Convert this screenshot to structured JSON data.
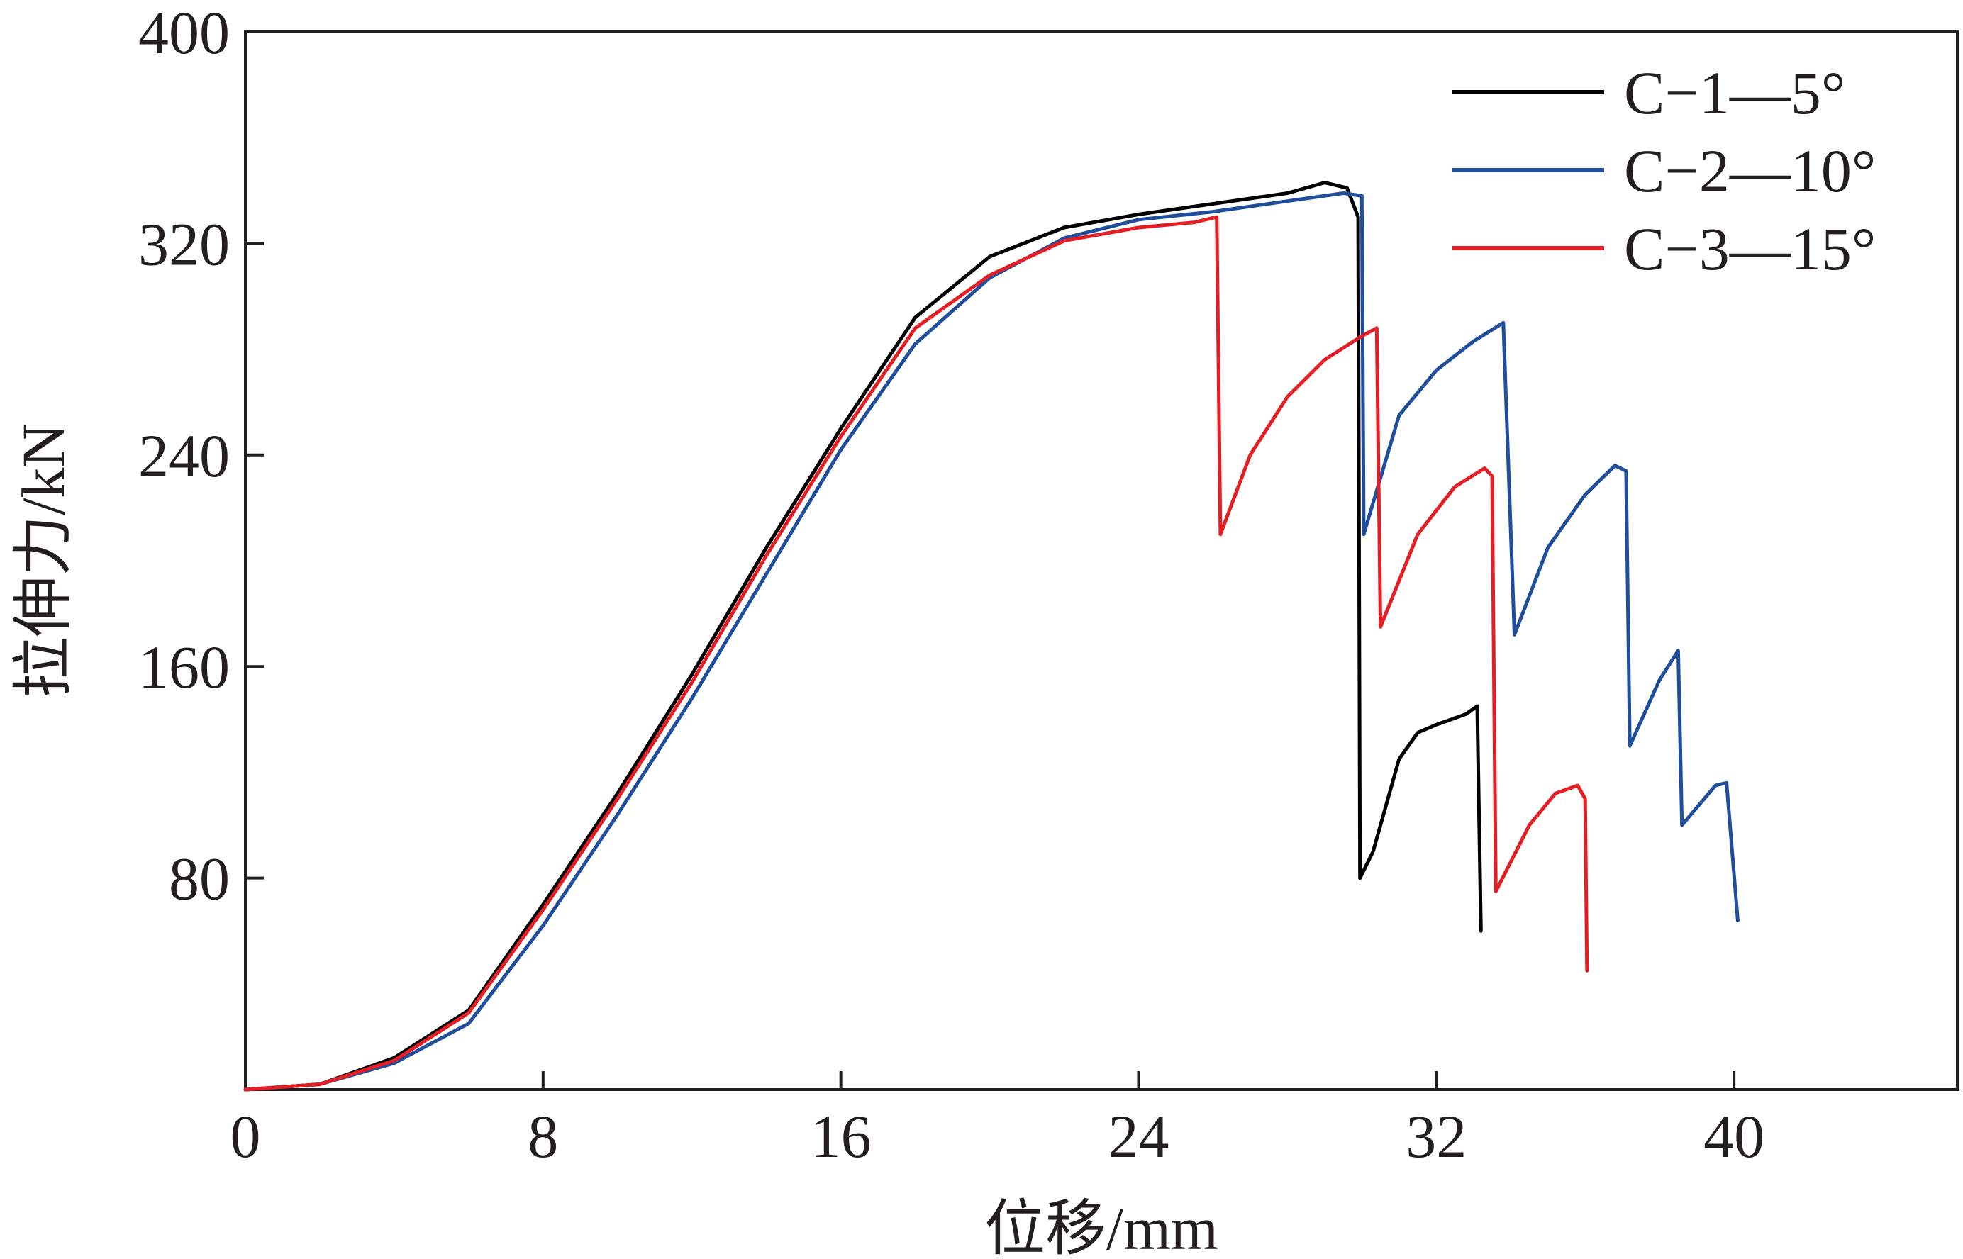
{
  "chart_data": {
    "type": "line",
    "xlabel": "位移/mm",
    "ylabel": "拉伸力/kN",
    "xlim": [
      0,
      46
    ],
    "ylim": [
      0,
      400
    ],
    "xticks": [
      0,
      8,
      16,
      24,
      32,
      40
    ],
    "yticks": [
      80,
      160,
      240,
      320,
      400
    ],
    "grid": false,
    "legend_position": "top-right",
    "series": [
      {
        "name": "C−1—5°",
        "color": "#000000",
        "points": [
          [
            0,
            0
          ],
          [
            2,
            2
          ],
          [
            4,
            12
          ],
          [
            6,
            30
          ],
          [
            8,
            70
          ],
          [
            10,
            112
          ],
          [
            12,
            157
          ],
          [
            14,
            205
          ],
          [
            16,
            250
          ],
          [
            18,
            292
          ],
          [
            20,
            315
          ],
          [
            22,
            326
          ],
          [
            24,
            331
          ],
          [
            26,
            335
          ],
          [
            28,
            339
          ],
          [
            29,
            343
          ],
          [
            29.6,
            341
          ],
          [
            29.9,
            330
          ],
          [
            29.95,
            80
          ],
          [
            30.3,
            90
          ],
          [
            31,
            125
          ],
          [
            31.5,
            135
          ],
          [
            32,
            138
          ],
          [
            32.8,
            142
          ],
          [
            33.1,
            145
          ],
          [
            33.2,
            60
          ]
        ]
      },
      {
        "name": "C−2—10°",
        "color": "#1f4e9c",
        "points": [
          [
            0,
            0
          ],
          [
            2,
            2
          ],
          [
            4,
            10
          ],
          [
            6,
            25
          ],
          [
            8,
            62
          ],
          [
            10,
            104
          ],
          [
            12,
            148
          ],
          [
            14,
            195
          ],
          [
            16,
            242
          ],
          [
            18,
            282
          ],
          [
            20,
            307
          ],
          [
            22,
            322
          ],
          [
            24,
            329
          ],
          [
            26,
            332
          ],
          [
            28,
            336
          ],
          [
            29.5,
            339
          ],
          [
            30,
            338
          ],
          [
            30.05,
            210
          ],
          [
            31,
            255
          ],
          [
            32,
            272
          ],
          [
            33,
            283
          ],
          [
            33.8,
            290
          ],
          [
            34.1,
            172
          ],
          [
            35,
            205
          ],
          [
            36,
            225
          ],
          [
            36.8,
            236
          ],
          [
            37.1,
            234
          ],
          [
            37.2,
            130
          ],
          [
            38,
            155
          ],
          [
            38.5,
            166
          ],
          [
            38.6,
            100
          ],
          [
            39.5,
            115
          ],
          [
            39.8,
            116
          ],
          [
            40.1,
            64
          ]
        ]
      },
      {
        "name": "C−3—15°",
        "color": "#e31e24",
        "points": [
          [
            0,
            0
          ],
          [
            2,
            2
          ],
          [
            4,
            11
          ],
          [
            6,
            29
          ],
          [
            8,
            68
          ],
          [
            10,
            110
          ],
          [
            12,
            154
          ],
          [
            14,
            202
          ],
          [
            16,
            247
          ],
          [
            18,
            288
          ],
          [
            20,
            308
          ],
          [
            22,
            321
          ],
          [
            24,
            326
          ],
          [
            25.5,
            328
          ],
          [
            26.1,
            330
          ],
          [
            26.2,
            210
          ],
          [
            27,
            240
          ],
          [
            28,
            262
          ],
          [
            29,
            276
          ],
          [
            30,
            285
          ],
          [
            30.4,
            288
          ],
          [
            30.5,
            175
          ],
          [
            31.5,
            210
          ],
          [
            32.5,
            228
          ],
          [
            33.3,
            235
          ],
          [
            33.5,
            232
          ],
          [
            33.6,
            75
          ],
          [
            34.5,
            100
          ],
          [
            35.2,
            112
          ],
          [
            35.8,
            115
          ],
          [
            36,
            110
          ],
          [
            36.05,
            45
          ]
        ]
      }
    ]
  }
}
